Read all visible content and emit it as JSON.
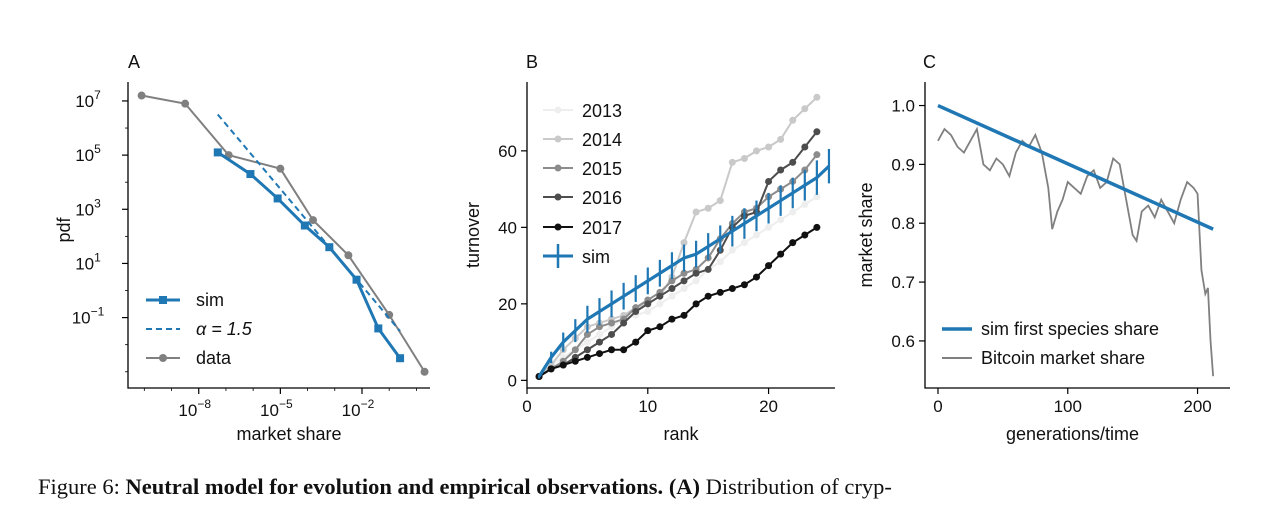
{
  "caption": {
    "prefix": "Figure 6:",
    "bold_title": "Neutral model for evolution and empirical observations.",
    "bold_panel": "(A)",
    "rest": "Distribution of cryp-"
  },
  "colors": {
    "sim": "#1f77b4",
    "data": "#808080",
    "text": "#111111"
  },
  "chart_data": [
    {
      "panel": "A",
      "type": "line",
      "xlabel": "market share",
      "ylabel": "pdf",
      "xscale": "log",
      "yscale": "log",
      "xlim_log10": [
        -10.6,
        0.5
      ],
      "ylim_log10": [
        -3.6,
        7.7
      ],
      "xtick_log10": [
        -8,
        -5,
        -2
      ],
      "ytick_log10": [
        7,
        5,
        3,
        1,
        -1
      ],
      "xtick_labels": [
        "10",
        "10",
        "10"
      ],
      "xtick_exponents": [
        "−8",
        "−5",
        "−2"
      ],
      "ytick_labels": [
        "10",
        "10",
        "10",
        "10",
        "10"
      ],
      "ytick_exponents": [
        "7",
        "5",
        "3",
        "1",
        "−1"
      ],
      "legend_position": "lower-left",
      "series": [
        {
          "name": "sim",
          "style": "line-square",
          "color": "#1f77b4",
          "x_log10": [
            -7.3,
            -6.1,
            -5.1,
            -4.1,
            -3.2,
            -2.2,
            -1.4,
            -0.6
          ],
          "y_log10": [
            5.1,
            4.3,
            3.4,
            2.4,
            1.6,
            0.4,
            -1.4,
            -2.5
          ]
        },
        {
          "name": "α = 1.5",
          "style": "dashed",
          "color": "#1f77b4",
          "x_log10": [
            -7.3,
            -0.6
          ],
          "y_log10": [
            6.5,
            -1.5
          ]
        },
        {
          "name": "data",
          "style": "line-circle",
          "color": "#808080",
          "x_log10": [
            -10.1,
            -8.5,
            -6.9,
            -5.0,
            -3.8,
            -2.5,
            -1.0,
            0.3
          ],
          "y_log10": [
            7.2,
            6.9,
            5.0,
            4.5,
            2.6,
            1.3,
            -0.9,
            -3.0
          ]
        }
      ]
    },
    {
      "panel": "B",
      "type": "line",
      "xlabel": "rank",
      "ylabel": "turnover",
      "xlim": [
        0,
        25.5
      ],
      "ylim": [
        -2,
        78
      ],
      "xticks": [
        0,
        10,
        20
      ],
      "yticks": [
        0,
        20,
        40,
        60
      ],
      "legend_position": "upper-left",
      "x": [
        1,
        2,
        3,
        4,
        5,
        6,
        7,
        8,
        9,
        10,
        11,
        12,
        13,
        14,
        15,
        16,
        17,
        18,
        19,
        20,
        21,
        22,
        23,
        24
      ],
      "series": [
        {
          "name": "2013",
          "color": "#eeeeee",
          "values": [
            1,
            4,
            6,
            8,
            10,
            12,
            14,
            16,
            17,
            18,
            20,
            22,
            24,
            26,
            29,
            31,
            34,
            36,
            38,
            40,
            42,
            44,
            46,
            48
          ]
        },
        {
          "name": "2014",
          "color": "#c9c9c9",
          "values": [
            1,
            4,
            8,
            11,
            14,
            15,
            16,
            17,
            19,
            20,
            22,
            27,
            36,
            44,
            45,
            47,
            57,
            58,
            60,
            61,
            63,
            68,
            71,
            74
          ]
        },
        {
          "name": "2015",
          "color": "#8c8c8c",
          "values": [
            1,
            3,
            5,
            8,
            12,
            14,
            15,
            16,
            19,
            21,
            23,
            26,
            28,
            29,
            32,
            37,
            41,
            44,
            45,
            48,
            50,
            52,
            55,
            59
          ]
        },
        {
          "name": "2016",
          "color": "#4d4d4d",
          "values": [
            1,
            3,
            4,
            6,
            8,
            10,
            12,
            15,
            18,
            20,
            22,
            24,
            26,
            28,
            29,
            34,
            40,
            43,
            44,
            52,
            55,
            57,
            61,
            65
          ]
        },
        {
          "name": "2017",
          "color": "#111111",
          "values": [
            1,
            3,
            4,
            5,
            6,
            7,
            8,
            8,
            10,
            13,
            14,
            16,
            17,
            20,
            22,
            23,
            24,
            25,
            27,
            30,
            33,
            36,
            38,
            40
          ]
        }
      ],
      "sim": {
        "name": "sim",
        "color": "#1f77b4",
        "x": [
          1,
          2,
          3,
          4,
          5,
          6,
          7,
          8,
          9,
          10,
          11,
          12,
          13,
          14,
          15,
          16,
          17,
          18,
          19,
          20,
          21,
          22,
          23,
          24,
          25
        ],
        "values": [
          1,
          6,
          10,
          13,
          16,
          18,
          20,
          22,
          24,
          26,
          28,
          30,
          32,
          33,
          35,
          37,
          39,
          41,
          43,
          45,
          47,
          49,
          51,
          53,
          56
        ],
        "err": [
          0.5,
          1.5,
          2.5,
          3,
          3.5,
          3.5,
          3.5,
          3.5,
          3.5,
          3.5,
          3.5,
          3.5,
          3.5,
          3.5,
          3.5,
          3.5,
          4,
          4,
          4,
          4,
          4,
          4,
          4,
          4.5,
          4.5
        ]
      }
    },
    {
      "panel": "C",
      "type": "line",
      "xlabel": "generations/time",
      "ylabel": "market share",
      "xlim": [
        -10,
        225
      ],
      "ylim": [
        0.52,
        1.04
      ],
      "xticks": [
        0,
        100,
        200
      ],
      "yticks": [
        1.0,
        0.9,
        0.8,
        0.7,
        0.6
      ],
      "ytick_labels": [
        "1.0",
        "0.9",
        "0.8",
        "0.7",
        "0.6"
      ],
      "legend_position": "lower-left",
      "series": [
        {
          "name": "sim first species share",
          "color": "#1f77b4",
          "x": [
            0,
            212
          ],
          "values": [
            1.0,
            0.79
          ]
        },
        {
          "name": "Bitcoin market share",
          "color": "#808080",
          "x": [
            0,
            5,
            10,
            15,
            20,
            25,
            30,
            35,
            40,
            45,
            50,
            55,
            60,
            65,
            70,
            75,
            80,
            85,
            88,
            92,
            96,
            100,
            105,
            110,
            115,
            120,
            125,
            130,
            135,
            140,
            145,
            150,
            153,
            157,
            162,
            167,
            172,
            177,
            182,
            187,
            192,
            197,
            200,
            203,
            206,
            208,
            210,
            212
          ],
          "values": [
            0.94,
            0.96,
            0.95,
            0.93,
            0.92,
            0.94,
            0.96,
            0.9,
            0.89,
            0.91,
            0.9,
            0.88,
            0.92,
            0.94,
            0.93,
            0.95,
            0.92,
            0.86,
            0.79,
            0.82,
            0.84,
            0.87,
            0.86,
            0.85,
            0.88,
            0.89,
            0.86,
            0.87,
            0.91,
            0.9,
            0.84,
            0.78,
            0.77,
            0.82,
            0.83,
            0.81,
            0.84,
            0.82,
            0.8,
            0.84,
            0.87,
            0.86,
            0.85,
            0.72,
            0.68,
            0.69,
            0.6,
            0.54
          ]
        }
      ]
    }
  ]
}
